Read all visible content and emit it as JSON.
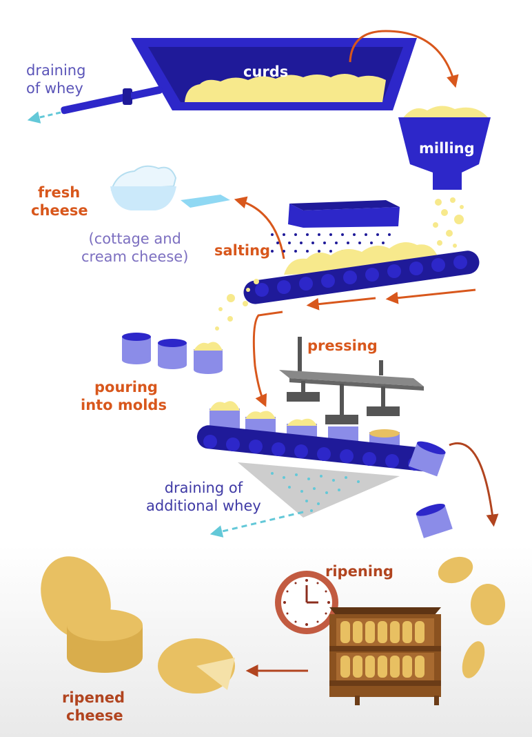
{
  "diagram": {
    "steps": {
      "curds": "curds",
      "draining_whey": [
        "draining",
        "of whey"
      ],
      "milling": "milling",
      "fresh_cheese": [
        "fresh",
        "cheese"
      ],
      "fresh_cheese_examples": [
        "(cottage and",
        "cream cheese)"
      ],
      "salting": "salting",
      "pressing": "pressing",
      "pouring": [
        "pouring",
        "into molds"
      ],
      "draining_additional": [
        "draining of",
        "additional whey"
      ],
      "ripening": "ripening",
      "ripened_cheese": [
        "ripened",
        "cheese"
      ]
    },
    "colors": {
      "vat_blue": "#2d27c9",
      "curd_yellow": "#f7e98c",
      "arrow_orange": "#d8571c",
      "whey_cyan": "#63c8d8",
      "cheese_gold": "#e8c062",
      "shelf_brown": "#8b5220",
      "clock_red": "#c25b41",
      "bottom_bg": "#eeeeee"
    }
  }
}
